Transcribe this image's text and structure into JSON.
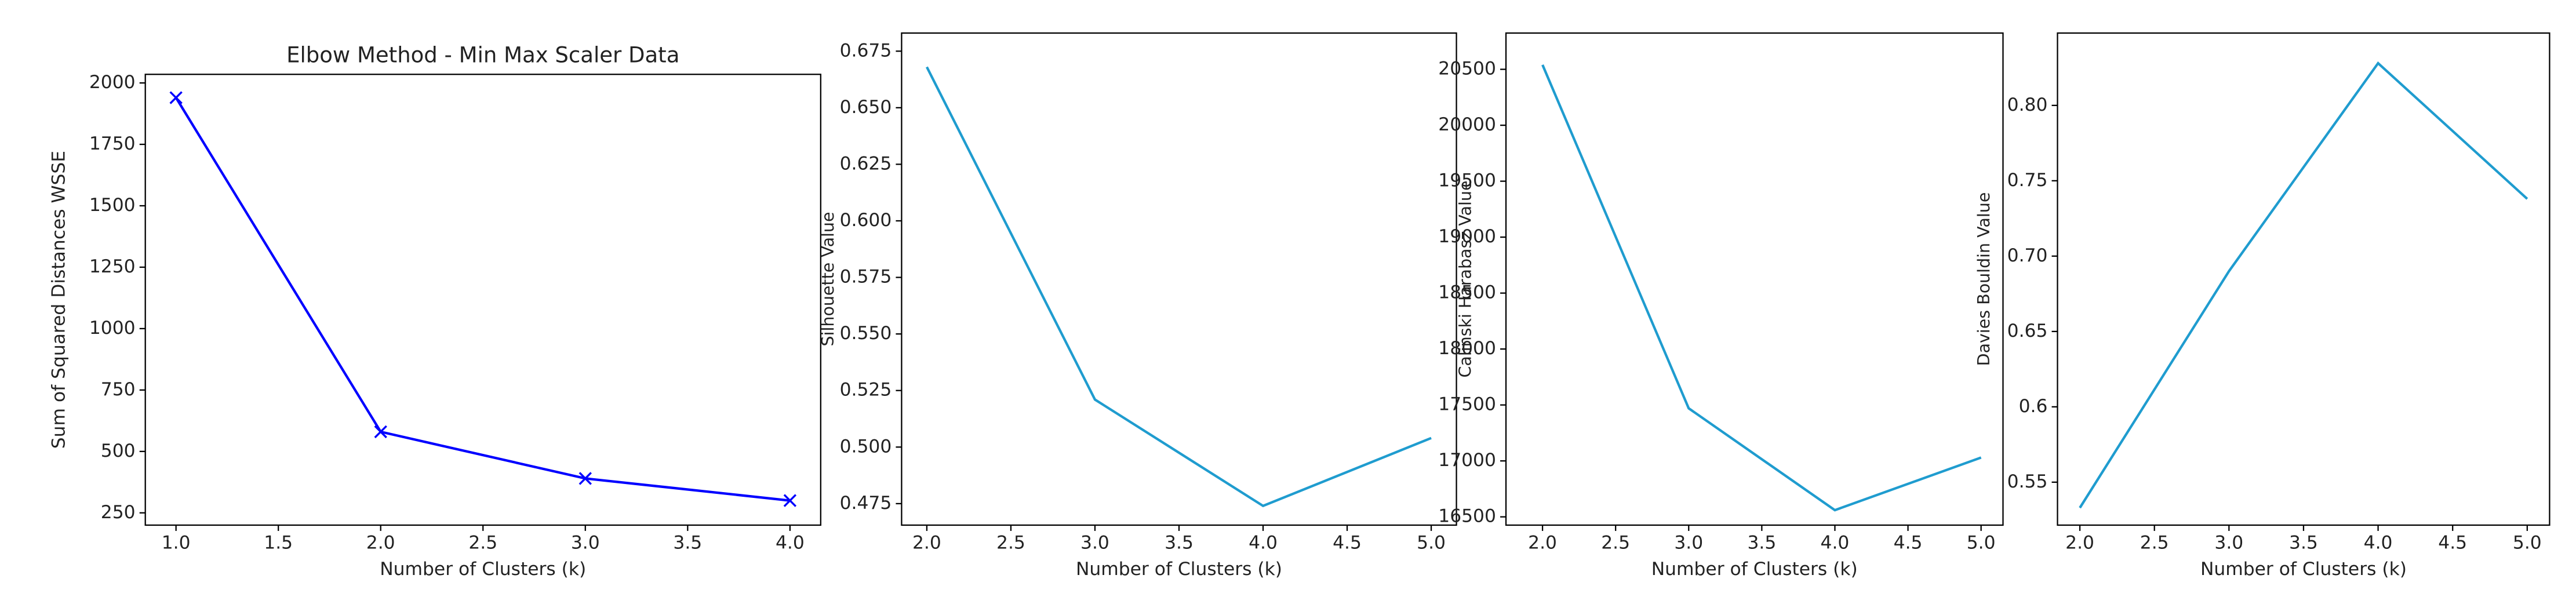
{
  "chart_data": [
    {
      "type": "line",
      "title": "Elbow Method - Min Max Scaler Data",
      "xlabel": "Number of Clusters (k)",
      "ylabel": "Sum of Squared Distances WSSE",
      "x": [
        1,
        2,
        3,
        4
      ],
      "values": [
        1940,
        580,
        390,
        300
      ],
      "color": "#0000ff",
      "marker": "x",
      "xlim": [
        0.85,
        4.15
      ],
      "ylim": [
        200,
        2035
      ],
      "xticks": [
        {
          "value": 1,
          "label": "1.0"
        },
        1.5,
        {
          "value": 2,
          "label": "2.0"
        },
        2.5,
        {
          "value": 3,
          "label": "3.0"
        },
        3.5,
        {
          "value": 4,
          "label": "4.0"
        }
      ],
      "yticks": [
        250,
        500,
        750,
        1000,
        1250,
        1500,
        1750,
        2000
      ]
    },
    {
      "type": "line",
      "xlabel": "Number of Clusters (k)",
      "ylabel": "Silhouette Value",
      "x": [
        2,
        3,
        4,
        5
      ],
      "values": [
        0.668,
        0.521,
        0.474,
        0.504
      ],
      "color": "#1f9ccf",
      "xlim": [
        1.85,
        5.15
      ],
      "ylim": [
        0.4655,
        0.683
      ],
      "xticks": [
        {
          "value": 2,
          "label": "2.0"
        },
        2.5,
        {
          "value": 3,
          "label": "3.0"
        },
        3.5,
        {
          "value": 4,
          "label": "4.0"
        },
        4.5,
        {
          "value": 5,
          "label": "5.0"
        }
      ],
      "yticks": [
        0.475,
        {
          "value": 0.5,
          "label": "0.500"
        },
        0.525,
        {
          "value": 0.55,
          "label": "0.550"
        },
        0.575,
        {
          "value": 0.6,
          "label": "0.600"
        },
        0.625,
        {
          "value": 0.65,
          "label": "0.650"
        },
        0.675
      ]
    },
    {
      "type": "line",
      "xlabel": "Number of Clusters (k)",
      "ylabel": "Calinski Harabasz Value",
      "x": [
        2,
        3,
        4,
        5
      ],
      "values": [
        20540,
        17470,
        16560,
        17030
      ],
      "color": "#1f9ccf",
      "xlim": [
        1.75,
        5.15
      ],
      "ylim": [
        16426,
        20824
      ],
      "xticks": [
        {
          "value": 2,
          "label": "2.0"
        },
        2.5,
        {
          "value": 3,
          "label": "3.0"
        },
        3.5,
        {
          "value": 4,
          "label": "4.0"
        },
        4.5,
        {
          "value": 5,
          "label": "5.0"
        }
      ],
      "yticks": [
        16500,
        17000,
        17500,
        18000,
        18500,
        19000,
        19500,
        20000,
        20500
      ]
    },
    {
      "type": "line",
      "xlabel": "Number of Clusters (k)",
      "ylabel": "Davies Bouldin Value",
      "x": [
        2,
        3,
        4,
        5
      ],
      "values": [
        0.533,
        0.69,
        0.828,
        0.738
      ],
      "color": "#1f9ccf",
      "xlim": [
        1.85,
        5.15
      ],
      "ylim": [
        0.5215,
        0.848
      ],
      "xticks": [
        {
          "value": 2,
          "label": "2.0"
        },
        2.5,
        {
          "value": 3,
          "label": "3.0"
        },
        3.5,
        {
          "value": 4,
          "label": "4.0"
        },
        4.5,
        {
          "value": 5,
          "label": "5.0"
        }
      ],
      "yticks": [
        0.55,
        0.6,
        0.65,
        {
          "value": 0.7,
          "label": "0.70"
        },
        0.75,
        {
          "value": 0.8,
          "label": "0.80"
        }
      ]
    }
  ]
}
